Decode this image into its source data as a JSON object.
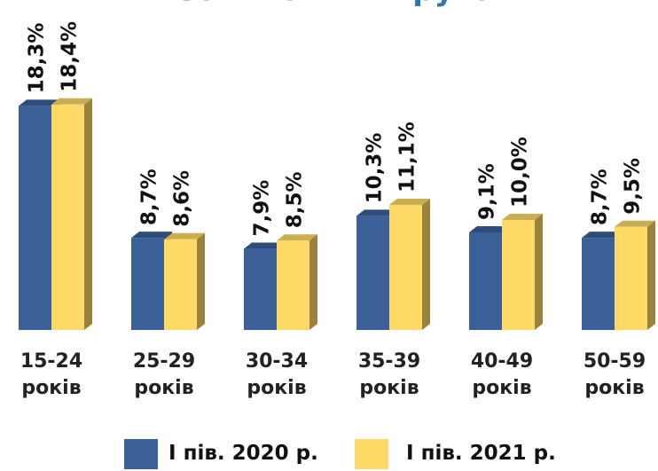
{
  "chart_data": {
    "type": "bar3d",
    "title": "За віковими групами",
    "categories": [
      "15-24 років",
      "25-29 років",
      "30-34 років",
      "35-39 років",
      "40-49 років",
      "50-59 років"
    ],
    "series": [
      {
        "name": "І пів. 2020 р.",
        "color": "#3b6098",
        "values": [
          18.3,
          8.7,
          7.9,
          10.3,
          9.1,
          8.7
        ],
        "value_labels": [
          "18,3%",
          "8,7%",
          "7,9%",
          "10,3%",
          "9,1%",
          "8,7%"
        ]
      },
      {
        "name": "І пів. 2021 р.",
        "color": "#ffd966",
        "values": [
          18.4,
          8.6,
          8.5,
          11.1,
          10.0,
          9.5
        ],
        "value_labels": [
          "18,4%",
          "8,6%",
          "8,5%",
          "11,1%",
          "10,0%",
          "9,5%"
        ]
      }
    ],
    "ylim": [
      2,
      20
    ],
    "legend": "bottom"
  }
}
